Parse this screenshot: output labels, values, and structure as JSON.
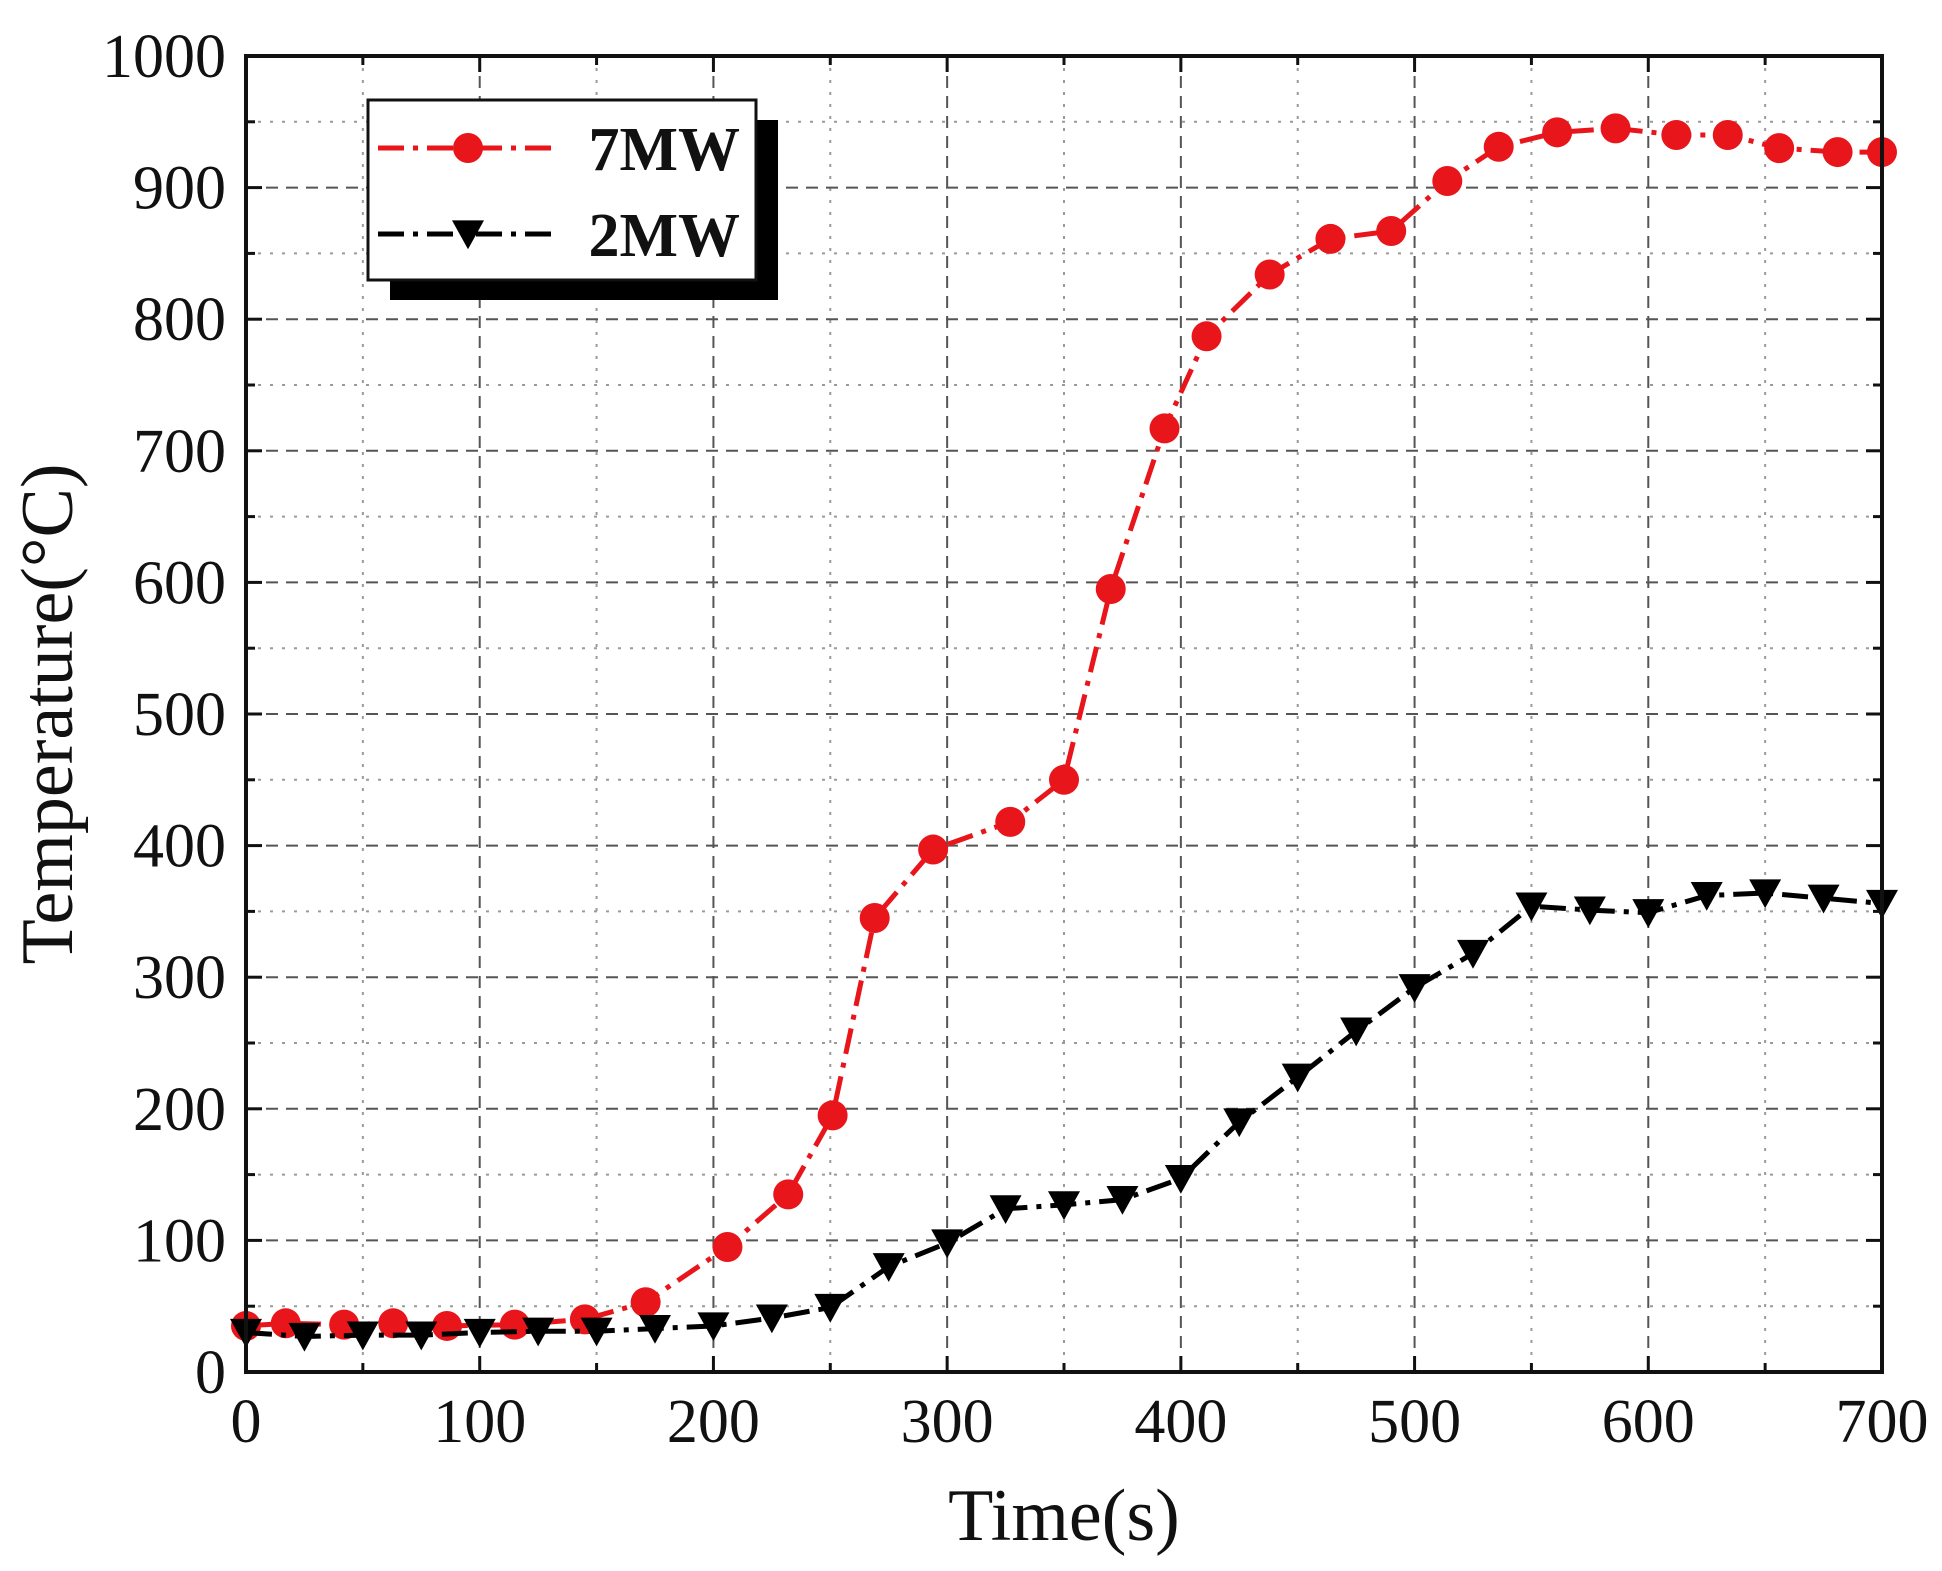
{
  "chart_data": {
    "type": "line",
    "title": "",
    "xlabel": "Time(s)",
    "ylabel": "Temperature(°C)",
    "xlim": [
      0,
      700
    ],
    "ylim": [
      0,
      1000
    ],
    "xticks": [
      0,
      100,
      200,
      300,
      400,
      500,
      600,
      700
    ],
    "yticks": [
      0,
      100,
      200,
      300,
      400,
      500,
      600,
      700,
      800,
      900,
      1000
    ],
    "grid": true,
    "legend_position": "top-left",
    "series": [
      {
        "name": "7MW",
        "color": "#e8151b",
        "line_style": "dash-dot",
        "marker": "circle",
        "x": [
          0,
          17,
          42,
          63,
          86,
          115,
          145,
          171,
          206,
          232,
          251,
          269,
          294,
          327,
          350,
          370,
          393,
          411,
          438,
          464,
          490,
          514,
          536,
          561,
          586,
          612,
          634,
          656,
          681,
          700
        ],
        "y": [
          35,
          37,
          36,
          37,
          35,
          36,
          40,
          53,
          95,
          135,
          195,
          345,
          397,
          418,
          450,
          595,
          717,
          787,
          834,
          861,
          867,
          905,
          931,
          942,
          945,
          940,
          940,
          930,
          927,
          927
        ]
      },
      {
        "name": "2MW",
        "color": "#000000",
        "line_style": "dash-dot",
        "marker": "triangle-down",
        "x": [
          0,
          25,
          50,
          75,
          100,
          125,
          150,
          175,
          200,
          225,
          250,
          275,
          300,
          325,
          350,
          375,
          400,
          425,
          450,
          475,
          500,
          525,
          550,
          575,
          600,
          625,
          650,
          675,
          700
        ],
        "y": [
          30,
          27,
          28,
          28,
          30,
          31,
          31,
          33,
          35,
          41,
          49,
          80,
          98,
          124,
          127,
          131,
          147,
          190,
          224,
          259,
          292,
          318,
          354,
          351,
          349,
          362,
          364,
          360,
          356
        ]
      }
    ]
  }
}
